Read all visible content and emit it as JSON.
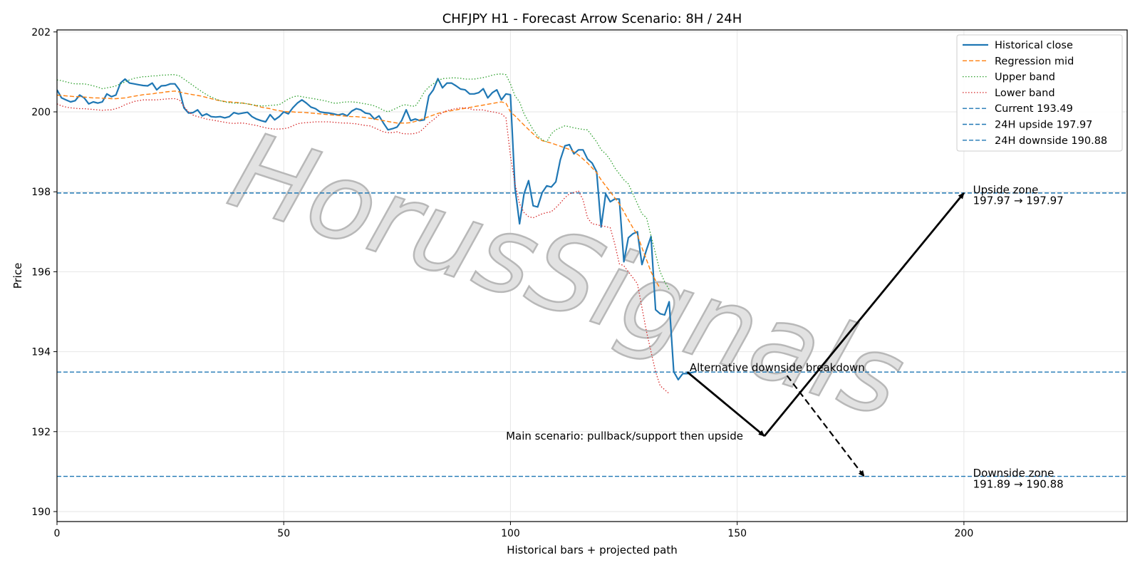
{
  "chart_data": {
    "type": "line",
    "title": "CHFJPY H1 - Forecast Arrow Scenario: 8H / 24H",
    "xlabel": "Historical bars + projected path",
    "ylabel": "Price",
    "xlim": [
      0,
      236
    ],
    "ylim": [
      189.75,
      202.05
    ],
    "x_ticks": [
      0,
      50,
      100,
      150,
      200
    ],
    "y_ticks": [
      190,
      192,
      194,
      196,
      198,
      200,
      202
    ],
    "grid": true,
    "legend_position": "top-right",
    "watermark": "HorusSignals",
    "colors": {
      "close": "#1f77b4",
      "mid": "#ff7f0e",
      "upper": "#2ca02c",
      "lower": "#d62728",
      "hline": "#1f77b4",
      "arrow": "#000000"
    },
    "series": [
      {
        "name": "Historical close",
        "style": "solid",
        "x_start": 0,
        "values": [
          200.55,
          200.35,
          200.3,
          200.25,
          200.28,
          200.42,
          200.35,
          200.2,
          200.25,
          200.22,
          200.25,
          200.45,
          200.38,
          200.42,
          200.72,
          200.82,
          200.72,
          200.7,
          200.68,
          200.66,
          200.65,
          200.72,
          200.55,
          200.65,
          200.66,
          200.7,
          200.7,
          200.55,
          200.1,
          199.97,
          199.98,
          200.05,
          199.9,
          199.95,
          199.88,
          199.87,
          199.88,
          199.85,
          199.88,
          199.98,
          199.95,
          199.97,
          199.99,
          199.88,
          199.82,
          199.78,
          199.75,
          199.93,
          199.8,
          199.88,
          200.0,
          199.95,
          200.1,
          200.22,
          200.3,
          200.22,
          200.12,
          200.08,
          200.0,
          199.98,
          199.97,
          199.95,
          199.92,
          199.95,
          199.9,
          200.02,
          200.08,
          200.05,
          199.97,
          199.95,
          199.82,
          199.9,
          199.72,
          199.55,
          199.58,
          199.62,
          199.78,
          200.05,
          199.78,
          199.82,
          199.78,
          199.8,
          200.4,
          200.55,
          200.83,
          200.6,
          200.72,
          200.72,
          200.65,
          200.57,
          200.55,
          200.45,
          200.45,
          200.48,
          200.58,
          200.35,
          200.48,
          200.55,
          200.3,
          200.45,
          200.43,
          198.1,
          197.2,
          197.95,
          198.28,
          197.65,
          197.62,
          197.98,
          198.15,
          198.12,
          198.25,
          198.8,
          199.15,
          199.18,
          198.95,
          199.05,
          199.05,
          198.82,
          198.72,
          198.5,
          197.12,
          197.95,
          197.75,
          197.82,
          197.82,
          196.25,
          196.85,
          196.95,
          197.0,
          196.18,
          196.55,
          196.88,
          195.05,
          194.95,
          194.92,
          195.25,
          193.5,
          193.3,
          193.45,
          193.45,
          193.48,
          193.5
        ]
      },
      {
        "name": "Regression mid",
        "style": "dashed",
        "x_start": 0,
        "values": [
          200.42,
          200.41,
          200.4,
          200.39,
          200.38,
          200.38,
          200.37,
          200.36,
          200.35,
          200.35,
          200.34,
          200.34,
          200.33,
          200.33,
          200.34,
          200.35,
          200.37,
          200.39,
          200.41,
          200.43,
          200.44,
          200.45,
          200.47,
          200.48,
          200.5,
          200.51,
          200.52,
          200.5,
          200.47,
          200.45,
          200.43,
          200.41,
          200.39,
          200.36,
          200.33,
          200.3,
          200.28,
          200.26,
          200.25,
          200.24,
          200.23,
          200.22,
          200.2,
          200.18,
          200.15,
          200.12,
          200.1,
          200.08,
          200.05,
          200.03,
          200.01,
          200.0,
          200.0,
          199.99,
          199.99,
          199.98,
          199.97,
          199.96,
          199.95,
          199.94,
          199.93,
          199.92,
          199.91,
          199.9,
          199.89,
          199.88,
          199.88,
          199.87,
          199.86,
          199.84,
          199.82,
          199.8,
          199.78,
          199.76,
          199.74,
          199.72,
          199.72,
          199.72,
          199.73,
          199.76,
          199.8,
          199.84,
          199.88,
          199.92,
          199.96,
          199.99,
          200.01,
          200.03,
          200.05,
          200.07,
          200.09,
          200.11,
          200.13,
          200.15,
          200.17,
          200.19,
          200.21,
          200.23,
          200.25,
          200.22,
          200.0,
          199.9,
          199.78,
          199.67,
          199.56,
          199.45,
          199.35,
          199.28,
          199.25,
          199.22,
          199.18,
          199.14,
          199.1,
          199.06,
          199.0,
          198.92,
          198.82,
          198.72,
          198.6,
          198.48,
          198.3,
          198.15,
          198.0,
          197.85,
          197.7,
          197.5,
          197.3,
          197.1,
          196.92,
          196.6,
          196.3,
          196.0,
          195.78,
          195.58
        ]
      },
      {
        "name": "Upper band",
        "style": "dotted",
        "x_start": 0,
        "values": [
          200.8,
          200.78,
          200.75,
          200.72,
          200.7,
          200.7,
          200.7,
          200.68,
          200.65,
          200.62,
          200.58,
          200.6,
          200.62,
          200.65,
          200.7,
          200.75,
          200.8,
          200.84,
          200.86,
          200.88,
          200.88,
          200.9,
          200.9,
          200.92,
          200.92,
          200.93,
          200.93,
          200.9,
          200.82,
          200.74,
          200.66,
          200.58,
          200.5,
          200.43,
          200.37,
          200.32,
          200.28,
          200.25,
          200.23,
          200.22,
          200.22,
          200.22,
          200.2,
          200.18,
          200.16,
          200.15,
          200.15,
          200.16,
          200.17,
          200.18,
          200.25,
          200.32,
          200.37,
          200.4,
          200.38,
          200.36,
          200.34,
          200.32,
          200.3,
          200.28,
          200.25,
          200.22,
          200.22,
          200.24,
          200.25,
          200.25,
          200.24,
          200.22,
          200.2,
          200.18,
          200.15,
          200.1,
          200.04,
          200.0,
          200.05,
          200.1,
          200.16,
          200.18,
          200.15,
          200.14,
          200.3,
          200.5,
          200.62,
          200.7,
          200.78,
          200.83,
          200.84,
          200.85,
          200.85,
          200.84,
          200.82,
          200.82,
          200.82,
          200.84,
          200.86,
          200.88,
          200.92,
          200.94,
          200.95,
          200.93,
          200.7,
          200.4,
          200.25,
          199.95,
          199.75,
          199.55,
          199.4,
          199.3,
          199.25,
          199.45,
          199.55,
          199.6,
          199.65,
          199.63,
          199.6,
          199.58,
          199.56,
          199.55,
          199.4,
          199.25,
          199.05,
          198.95,
          198.8,
          198.6,
          198.45,
          198.3,
          198.2,
          197.95,
          197.7,
          197.45,
          197.35,
          196.9,
          196.45,
          196.0,
          195.75,
          195.55
        ]
      },
      {
        "name": "Lower band",
        "style": "dotted",
        "x_start": 0,
        "values": [
          200.2,
          200.15,
          200.12,
          200.1,
          200.09,
          200.08,
          200.08,
          200.07,
          200.06,
          200.05,
          200.04,
          200.05,
          200.05,
          200.08,
          200.12,
          200.18,
          200.22,
          200.26,
          200.28,
          200.3,
          200.3,
          200.3,
          200.3,
          200.31,
          200.32,
          200.33,
          200.33,
          200.3,
          200.13,
          200.0,
          199.92,
          199.88,
          199.85,
          199.82,
          199.8,
          199.78,
          199.76,
          199.74,
          199.72,
          199.71,
          199.72,
          199.72,
          199.7,
          199.68,
          199.66,
          199.63,
          199.6,
          199.58,
          199.57,
          199.57,
          199.58,
          199.6,
          199.65,
          199.7,
          199.72,
          199.73,
          199.74,
          199.75,
          199.75,
          199.75,
          199.75,
          199.74,
          199.73,
          199.72,
          199.72,
          199.71,
          199.7,
          199.68,
          199.66,
          199.65,
          199.6,
          199.55,
          199.5,
          199.48,
          199.48,
          199.5,
          199.46,
          199.45,
          199.45,
          199.46,
          199.5,
          199.6,
          199.72,
          199.8,
          199.9,
          199.98,
          200.03,
          200.06,
          200.08,
          200.1,
          200.1,
          200.08,
          200.05,
          200.05,
          200.05,
          200.02,
          200.0,
          199.98,
          199.95,
          199.85,
          198.9,
          198.2,
          197.7,
          197.48,
          197.38,
          197.35,
          197.4,
          197.45,
          197.48,
          197.5,
          197.6,
          197.72,
          197.85,
          197.95,
          197.98,
          198.02,
          197.8,
          197.35,
          197.2,
          197.18,
          197.15,
          197.13,
          197.1,
          196.7,
          196.2,
          196.15,
          196.0,
          195.85,
          195.7,
          195.1,
          194.5,
          194.0,
          193.5,
          193.15,
          193.05,
          192.95
        ]
      },
      {
        "name": "Current 193.49",
        "style": "dashed",
        "hline": 193.49
      },
      {
        "name": "24H upside 197.97",
        "style": "dashed",
        "hline": 197.97
      },
      {
        "name": "24H downside 190.88",
        "style": "dashed",
        "hline": 190.88
      }
    ],
    "arrows": [
      {
        "from": [
          139,
          193.49
        ],
        "to": [
          156,
          191.89
        ],
        "style": "solid"
      },
      {
        "from": [
          156,
          191.89
        ],
        "to": [
          200,
          197.97
        ],
        "style": "solid"
      },
      {
        "from": [
          161,
          193.4
        ],
        "to": [
          178,
          190.88
        ],
        "style": "dashed"
      }
    ],
    "annotations": [
      {
        "text": "Main scenario: pullback/support then upside",
        "x": 99,
        "y": 191.89,
        "anchor": "start"
      },
      {
        "text": "Alternative downside breakdown",
        "x": 139.5,
        "y": 193.6,
        "anchor": "start"
      },
      {
        "text": "Upside zone",
        "x": 202,
        "y": 198.05,
        "anchor": "start"
      },
      {
        "text": "197.97 → 197.97",
        "x": 202,
        "y": 197.78,
        "anchor": "start"
      },
      {
        "text": "Downside zone",
        "x": 202,
        "y": 190.96,
        "anchor": "start"
      },
      {
        "text": "191.89 → 190.88",
        "x": 202,
        "y": 190.69,
        "anchor": "start"
      }
    ]
  }
}
